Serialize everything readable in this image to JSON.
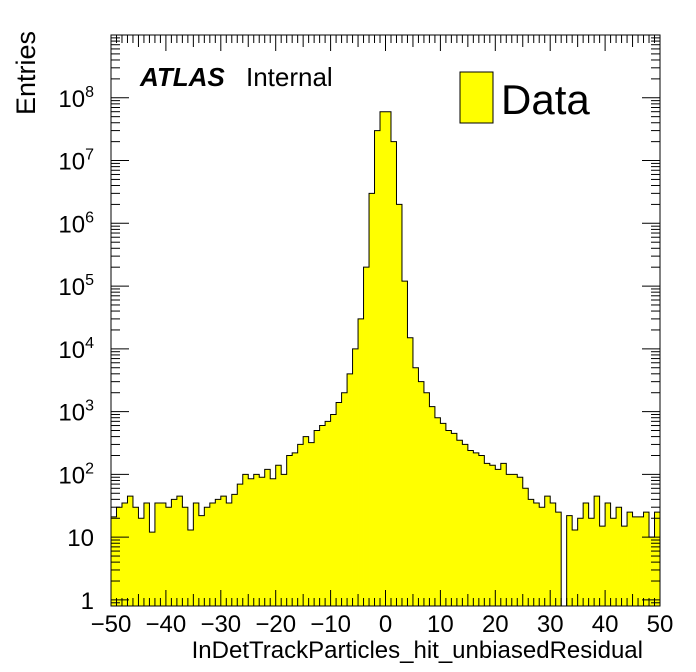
{
  "chart_data": {
    "type": "histogram",
    "title": "",
    "xlabel": "InDetTrackParticles_hit_unbiasedResidual",
    "ylabel": "Entries",
    "xlim": [
      -50,
      50
    ],
    "ylim": [
      0.8,
      1000000000
    ],
    "log_y": true,
    "grid": false,
    "legend_position": "top-right",
    "annotation": {
      "bold": "ATLAS",
      "normal": "Internal"
    },
    "x_ticks": [
      "−50",
      "−40",
      "−30",
      "−20",
      "−10",
      "0",
      "10",
      "20",
      "30",
      "40",
      "50"
    ],
    "x_tick_values": [
      -50,
      -40,
      -30,
      -20,
      -10,
      0,
      10,
      20,
      30,
      40,
      50
    ],
    "y_ticks": [
      {
        "base": "1",
        "exp": ""
      },
      {
        "base": "10",
        "exp": ""
      },
      {
        "base": "10",
        "exp": "2"
      },
      {
        "base": "10",
        "exp": "3"
      },
      {
        "base": "10",
        "exp": "4"
      },
      {
        "base": "10",
        "exp": "5"
      },
      {
        "base": "10",
        "exp": "6"
      },
      {
        "base": "10",
        "exp": "7"
      },
      {
        "base": "10",
        "exp": "8"
      }
    ],
    "y_tick_values": [
      1,
      10,
      100,
      1000,
      10000,
      100000,
      1000000,
      10000000,
      100000000
    ],
    "series": [
      {
        "name": "Data",
        "color": "#ffff00",
        "edge_color": "#000000",
        "bin_edges_start": -50,
        "bin_width": 1,
        "values": [
          21,
          30,
          35,
          45,
          30,
          20,
          35,
          12,
          35,
          35,
          30,
          40,
          45,
          30,
          13,
          35,
          22,
          30,
          35,
          40,
          45,
          35,
          48,
          70,
          100,
          85,
          100,
          90,
          120,
          85,
          140,
          100,
          200,
          220,
          300,
          400,
          320,
          500,
          600,
          700,
          900,
          1400,
          2000,
          4000,
          10000,
          30000,
          200000,
          3000000,
          30000000,
          60000000,
          60000000,
          20000000,
          2000000,
          120000,
          15000,
          5000,
          3000,
          2000,
          1200,
          800,
          650,
          500,
          450,
          350,
          300,
          240,
          220,
          200,
          150,
          140,
          120,
          150,
          100,
          100,
          90,
          60,
          40,
          35,
          30,
          45,
          35,
          25,
          0.8,
          22,
          13,
          20,
          35,
          20,
          45,
          15,
          35,
          20,
          30,
          15,
          25,
          21,
          21,
          25,
          10,
          25
        ]
      }
    ]
  }
}
